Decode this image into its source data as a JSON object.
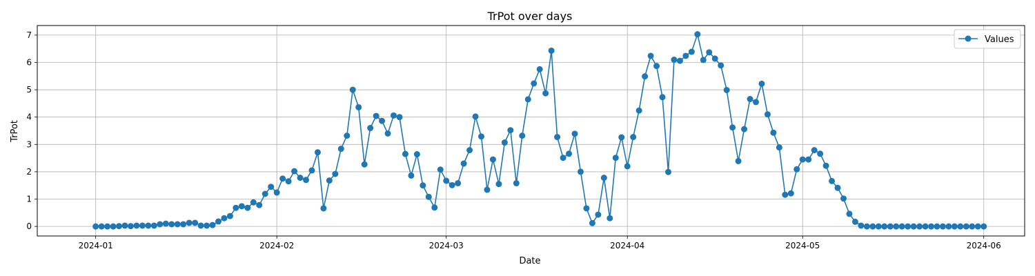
{
  "chart_data": {
    "type": "line",
    "title": "TrPot over days",
    "xlabel": "Date",
    "ylabel": "TrPot",
    "x_start": "2024-01-01",
    "x_step_days": 1,
    "xlim": [
      "2023-12-22",
      "2024-06-08"
    ],
    "ylim": [
      -0.35,
      7.35
    ],
    "x_ticks": [
      "2024-01",
      "2024-02",
      "2024-03",
      "2024-04",
      "2024-05",
      "2024-06"
    ],
    "y_ticks": [
      0,
      1,
      2,
      3,
      4,
      5,
      6,
      7
    ],
    "grid": true,
    "legend_position": "top-right",
    "color": "#1f77b4",
    "series": [
      {
        "name": "Values",
        "marker": "circle",
        "values": [
          0.0,
          0.0,
          0.0,
          0.0,
          0.01,
          0.03,
          0.01,
          0.03,
          0.03,
          0.03,
          0.03,
          0.08,
          0.1,
          0.08,
          0.08,
          0.08,
          0.13,
          0.13,
          0.03,
          0.03,
          0.05,
          0.18,
          0.3,
          0.38,
          0.68,
          0.74,
          0.68,
          0.88,
          0.78,
          1.19,
          1.45,
          1.24,
          1.75,
          1.65,
          2.02,
          1.78,
          1.7,
          2.05,
          2.71,
          0.66,
          1.68,
          1.92,
          2.84,
          3.32,
          5.0,
          4.36,
          2.27,
          3.6,
          4.04,
          3.86,
          3.4,
          4.06,
          4.0,
          2.65,
          1.86,
          2.64,
          1.5,
          1.08,
          0.69,
          2.08,
          1.67,
          1.51,
          1.58,
          2.3,
          2.79,
          4.02,
          3.29,
          1.34,
          2.45,
          1.55,
          3.07,
          3.52,
          1.58,
          3.32,
          4.65,
          5.23,
          5.75,
          4.87,
          6.43,
          3.27,
          2.51,
          2.66,
          3.39,
          2.0,
          0.66,
          0.12,
          0.43,
          1.78,
          0.3,
          2.51,
          3.26,
          2.2,
          3.27,
          4.24,
          5.49,
          6.24,
          5.87,
          4.73,
          1.99,
          6.1,
          6.06,
          6.24,
          6.39,
          7.03,
          6.09,
          6.37,
          6.14,
          5.89,
          4.99,
          3.62,
          2.39,
          3.56,
          4.66,
          4.55,
          5.22,
          4.1,
          3.43,
          2.89,
          1.16,
          1.21,
          2.09,
          2.45,
          2.45,
          2.79,
          2.66,
          2.22,
          1.66,
          1.41,
          1.02,
          0.46,
          0.17,
          0.03,
          0.0,
          0.0,
          0.0,
          0.0,
          0.0,
          0.0,
          0.0,
          0.0,
          0.0,
          0.0,
          0.0,
          0.0,
          0.0,
          0.0,
          0.0,
          0.0,
          0.0,
          0.0,
          0.0,
          0.0,
          0.0
        ]
      }
    ]
  }
}
